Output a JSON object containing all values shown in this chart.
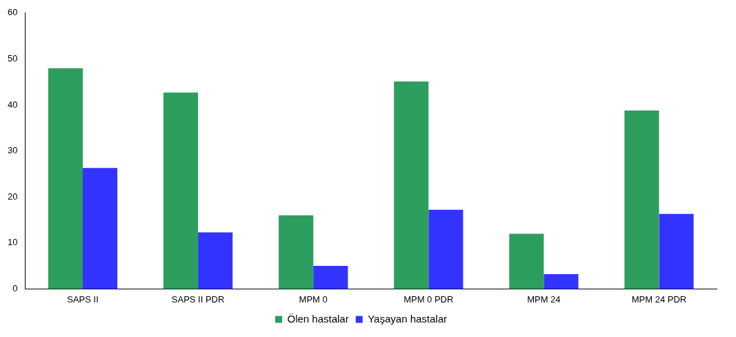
{
  "chart_data": {
    "type": "bar",
    "categories": [
      "SAPS II",
      "SAPS II PDR",
      "MPM 0",
      "MPM 0 PDR",
      "MPM 24",
      "MPM 24 PDR"
    ],
    "series": [
      {
        "name": "Ölen hastalar",
        "color": "#2e9e5e",
        "values": [
          48,
          42.7,
          16,
          45.1,
          12,
          38.8
        ]
      },
      {
        "name": "Yaşayan hastalar",
        "color": "#3333ff",
        "values": [
          26.3,
          12.3,
          5,
          17.2,
          3.2,
          16.3
        ]
      }
    ],
    "ylim": [
      0,
      60
    ],
    "yticks": [
      0,
      10,
      20,
      30,
      40,
      50,
      60
    ],
    "grid": false,
    "legend": "bottom"
  }
}
